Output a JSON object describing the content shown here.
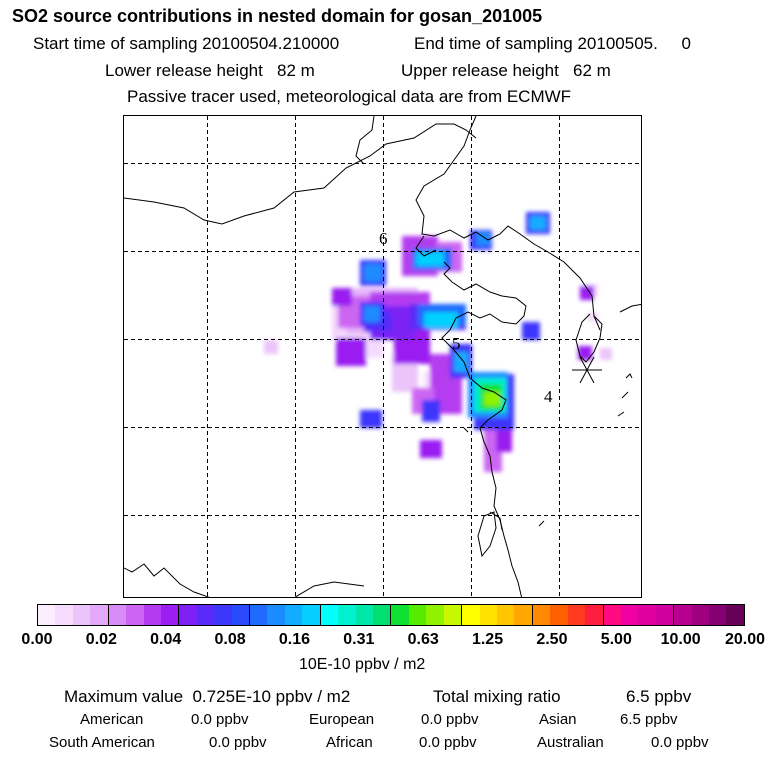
{
  "header": {
    "title": "SO2 source contributions in nested domain for gosan_201005",
    "start_label": "Start time of sampling 20100504.210000",
    "end_label": "End time of sampling 20100505.     0",
    "lower_release": "Lower release height   82 m",
    "upper_release": "Upper release height   62 m",
    "tracer_note": "Passive tracer used, meteorological data are from ECMWF"
  },
  "map": {
    "labels": {
      "label_6": "6",
      "label_5": "5",
      "label_4": "4"
    },
    "receptor_icon": "asterisk-receptor-icon",
    "line_color": "#000000"
  },
  "colorbar": {
    "colors": [
      "#fbeefe",
      "#f5dcfc",
      "#ecc4fa",
      "#e3a8f7",
      "#d98cf5",
      "#cc66f2",
      "#b43cf0",
      "#9a1ff0",
      "#7d20f5",
      "#5a2af8",
      "#3d36fb",
      "#2a4bfc",
      "#1f6bff",
      "#1a8cff",
      "#12acff",
      "#06cfff",
      "#00ffff",
      "#00f0d0",
      "#00e8a8",
      "#00e070",
      "#10e030",
      "#56ec00",
      "#90f200",
      "#c8f800",
      "#ffff00",
      "#ffe200",
      "#ffc600",
      "#ffa600",
      "#ff8a00",
      "#ff6000",
      "#ff3a1e",
      "#ff1e40",
      "#ff0a80",
      "#f000a0",
      "#e000a0",
      "#d0009e",
      "#b8008e",
      "#9e0080",
      "#850070",
      "#660058"
    ],
    "ticks": [
      "0.00",
      "0.02",
      "0.04",
      "0.08",
      "0.16",
      "0.31",
      "0.63",
      "1.25",
      "2.50",
      "5.00",
      "10.00",
      "20.00"
    ],
    "units": "10E-10 ppbv / m2"
  },
  "stats": {
    "max_value": "Maximum value  0.725E-10 ppbv / m2",
    "total_mixing_label": "Total mixing ratio",
    "total_mixing_value": "6.5 ppbv"
  },
  "regions": [
    {
      "name": "American",
      "value": "0.0 ppbv"
    },
    {
      "name": "European",
      "value": "0.0 ppbv"
    },
    {
      "name": "Asian",
      "value": "6.5 ppbv"
    },
    {
      "name": "South American",
      "value": "0.0 ppbv"
    },
    {
      "name": "African",
      "value": "0.0 ppbv"
    },
    {
      "name": "Australian",
      "value": "0.0 ppbv"
    }
  ]
}
